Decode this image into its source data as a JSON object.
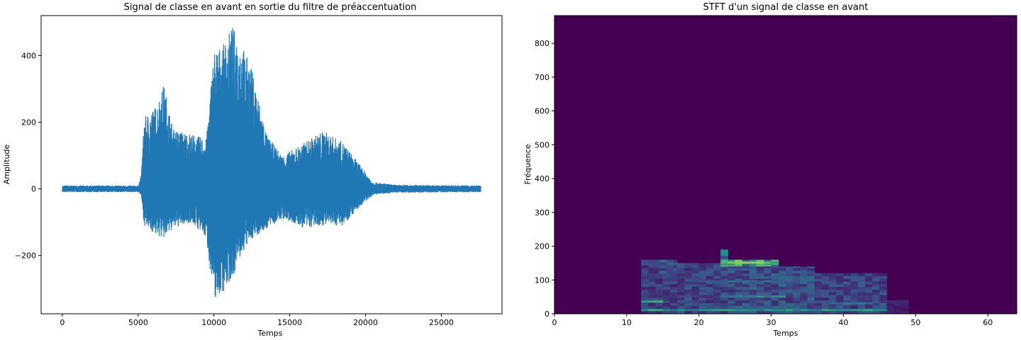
{
  "chart_data": [
    {
      "type": "line",
      "title": "Signal de classe en avant en sortie du filtre de préaccentuation",
      "xlabel": "Temps",
      "ylabel": "Amplitude",
      "xlim": [
        -1400,
        29000
      ],
      "ylim": [
        -375,
        520
      ],
      "xticks": [
        0,
        5000,
        10000,
        15000,
        20000,
        25000
      ],
      "xtick_labels": [
        "0",
        "5000",
        "10000",
        "15000",
        "20000",
        "25000"
      ],
      "yticks": [
        -200,
        0,
        200,
        400
      ],
      "ytick_labels": [
        "−200",
        "0",
        "200",
        "400"
      ],
      "grid": false,
      "series": [
        {
          "color": "#1f77b4",
          "x_range": [
            0,
            27600
          ],
          "noise_amplitude": 8,
          "envelope": [
            {
              "x": 0,
              "pos": 10,
              "neg": -10
            },
            {
              "x": 5000,
              "pos": 10,
              "neg": -10
            },
            {
              "x": 5200,
              "pos": 40,
              "neg": -20
            },
            {
              "x": 5400,
              "pos": 215,
              "neg": -110
            },
            {
              "x": 6200,
              "pos": 250,
              "neg": -140
            },
            {
              "x": 6700,
              "pos": 315,
              "neg": -150
            },
            {
              "x": 7300,
              "pos": 180,
              "neg": -120
            },
            {
              "x": 8500,
              "pos": 165,
              "neg": -100
            },
            {
              "x": 9500,
              "pos": 150,
              "neg": -150
            },
            {
              "x": 10000,
              "pos": 420,
              "neg": -335
            },
            {
              "x": 10600,
              "pos": 430,
              "neg": -310
            },
            {
              "x": 11200,
              "pos": 490,
              "neg": -270
            },
            {
              "x": 11800,
              "pos": 440,
              "neg": -200
            },
            {
              "x": 12500,
              "pos": 360,
              "neg": -150
            },
            {
              "x": 13500,
              "pos": 160,
              "neg": -120
            },
            {
              "x": 14500,
              "pos": 100,
              "neg": -90
            },
            {
              "x": 16000,
              "pos": 140,
              "neg": -120
            },
            {
              "x": 17200,
              "pos": 175,
              "neg": -110
            },
            {
              "x": 18500,
              "pos": 140,
              "neg": -110
            },
            {
              "x": 19500,
              "pos": 80,
              "neg": -60
            },
            {
              "x": 20500,
              "pos": 20,
              "neg": -18
            },
            {
              "x": 22000,
              "pos": 12,
              "neg": -12
            },
            {
              "x": 27600,
              "pos": 10,
              "neg": -10
            }
          ]
        }
      ]
    },
    {
      "type": "heatmap",
      "title": "STFT d'un signal de classe en avant",
      "xlabel": "Temps",
      "ylabel": "Fréquence",
      "xlim": [
        0,
        64
      ],
      "ylim": [
        0,
        882
      ],
      "xticks": [
        0,
        10,
        20,
        30,
        40,
        50,
        60
      ],
      "xtick_labels": [
        "0",
        "10",
        "20",
        "30",
        "40",
        "50",
        "60"
      ],
      "yticks": [
        0,
        100,
        200,
        300,
        400,
        500,
        600,
        700,
        800
      ],
      "ytick_labels": [
        "0",
        "100",
        "200",
        "300",
        "400",
        "500",
        "600",
        "700",
        "800"
      ],
      "colormap": "viridis",
      "background_color": "#440154",
      "active_time_range": [
        12,
        49
      ],
      "hot_regions": [
        {
          "t": [
            12,
            17
          ],
          "f": [
            0,
            160
          ],
          "level": 0.25
        },
        {
          "t": [
            14.5,
            17
          ],
          "f": [
            120,
            160
          ],
          "level": 0.35
        },
        {
          "t": [
            17,
            23
          ],
          "f": [
            0,
            150
          ],
          "level": 0.3
        },
        {
          "t": [
            23,
            24
          ],
          "f": [
            140,
            190
          ],
          "level": 0.55
        },
        {
          "t": [
            23,
            31
          ],
          "f": [
            130,
            160
          ],
          "level": 0.8
        },
        {
          "t": [
            23,
            36
          ],
          "f": [
            0,
            140
          ],
          "level": 0.35
        },
        {
          "t": [
            36,
            46
          ],
          "f": [
            0,
            120
          ],
          "level": 0.3
        },
        {
          "t": [
            46,
            49
          ],
          "f": [
            0,
            40
          ],
          "level": 0.15
        }
      ],
      "bright_lines": [
        {
          "t": [
            23,
            31
          ],
          "f": 150,
          "level": 0.85
        },
        {
          "t": [
            12,
            46
          ],
          "f": 10,
          "level": 0.6
        },
        {
          "t": [
            12,
            15
          ],
          "f": 35,
          "level": 0.7
        },
        {
          "t": [
            24,
            32
          ],
          "f": 50,
          "level": 0.55
        },
        {
          "t": [
            38,
            44
          ],
          "f": 30,
          "level": 0.5
        },
        {
          "t": [
            20,
            30
          ],
          "f": 95,
          "level": 0.4
        }
      ]
    }
  ]
}
